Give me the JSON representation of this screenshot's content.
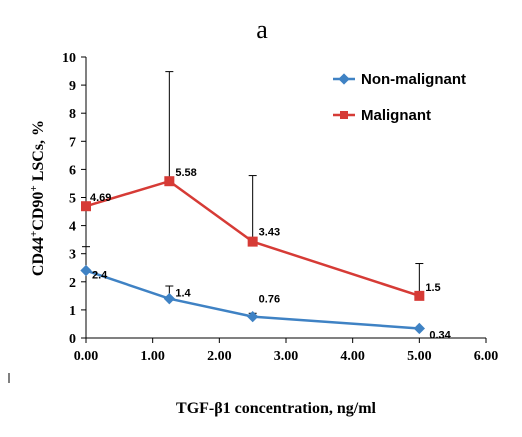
{
  "chart_data": {
    "type": "line",
    "title": "a",
    "xlabel": "TGF-β1 concentration, ng/ml",
    "ylabel_parts": [
      "CD44",
      "+",
      "CD90",
      "+",
      " LSCs, %"
    ],
    "xlim": [
      0,
      6
    ],
    "ylim": [
      0,
      10
    ],
    "x_ticks": [
      0,
      1,
      2,
      3,
      4,
      5,
      6
    ],
    "x_tick_labels": [
      "0.00",
      "1.00",
      "2.00",
      "3.00",
      "4.00",
      "5.00",
      "6.00"
    ],
    "y_ticks": [
      0,
      1,
      2,
      3,
      4,
      5,
      6,
      7,
      8,
      9,
      10
    ],
    "y_tick_labels": [
      "0",
      "1",
      "2",
      "3",
      "4",
      "5",
      "6",
      "7",
      "8",
      "9",
      "10"
    ],
    "grid": false,
    "legend_position": "top-right",
    "series": [
      {
        "name": "Non-malignant",
        "color": "#3f82c4",
        "marker": "diamond",
        "x": [
          0,
          1.25,
          2.5,
          5
        ],
        "y": [
          2.4,
          1.4,
          0.76,
          0.34
        ],
        "error_upper": [
          0.85,
          0.45,
          0.12,
          0
        ],
        "labels": [
          "2.4",
          "1.4",
          "0.76",
          "0.34"
        ]
      },
      {
        "name": "Malignant",
        "color": "#d63b36",
        "marker": "square",
        "x": [
          0,
          1.25,
          2.5,
          5
        ],
        "y": [
          4.69,
          5.58,
          3.43,
          1.5
        ],
        "error_upper": [
          0,
          3.9,
          2.35,
          1.15
        ],
        "labels": [
          "4.69",
          "5.58",
          "3.43",
          "1.5"
        ]
      }
    ]
  }
}
